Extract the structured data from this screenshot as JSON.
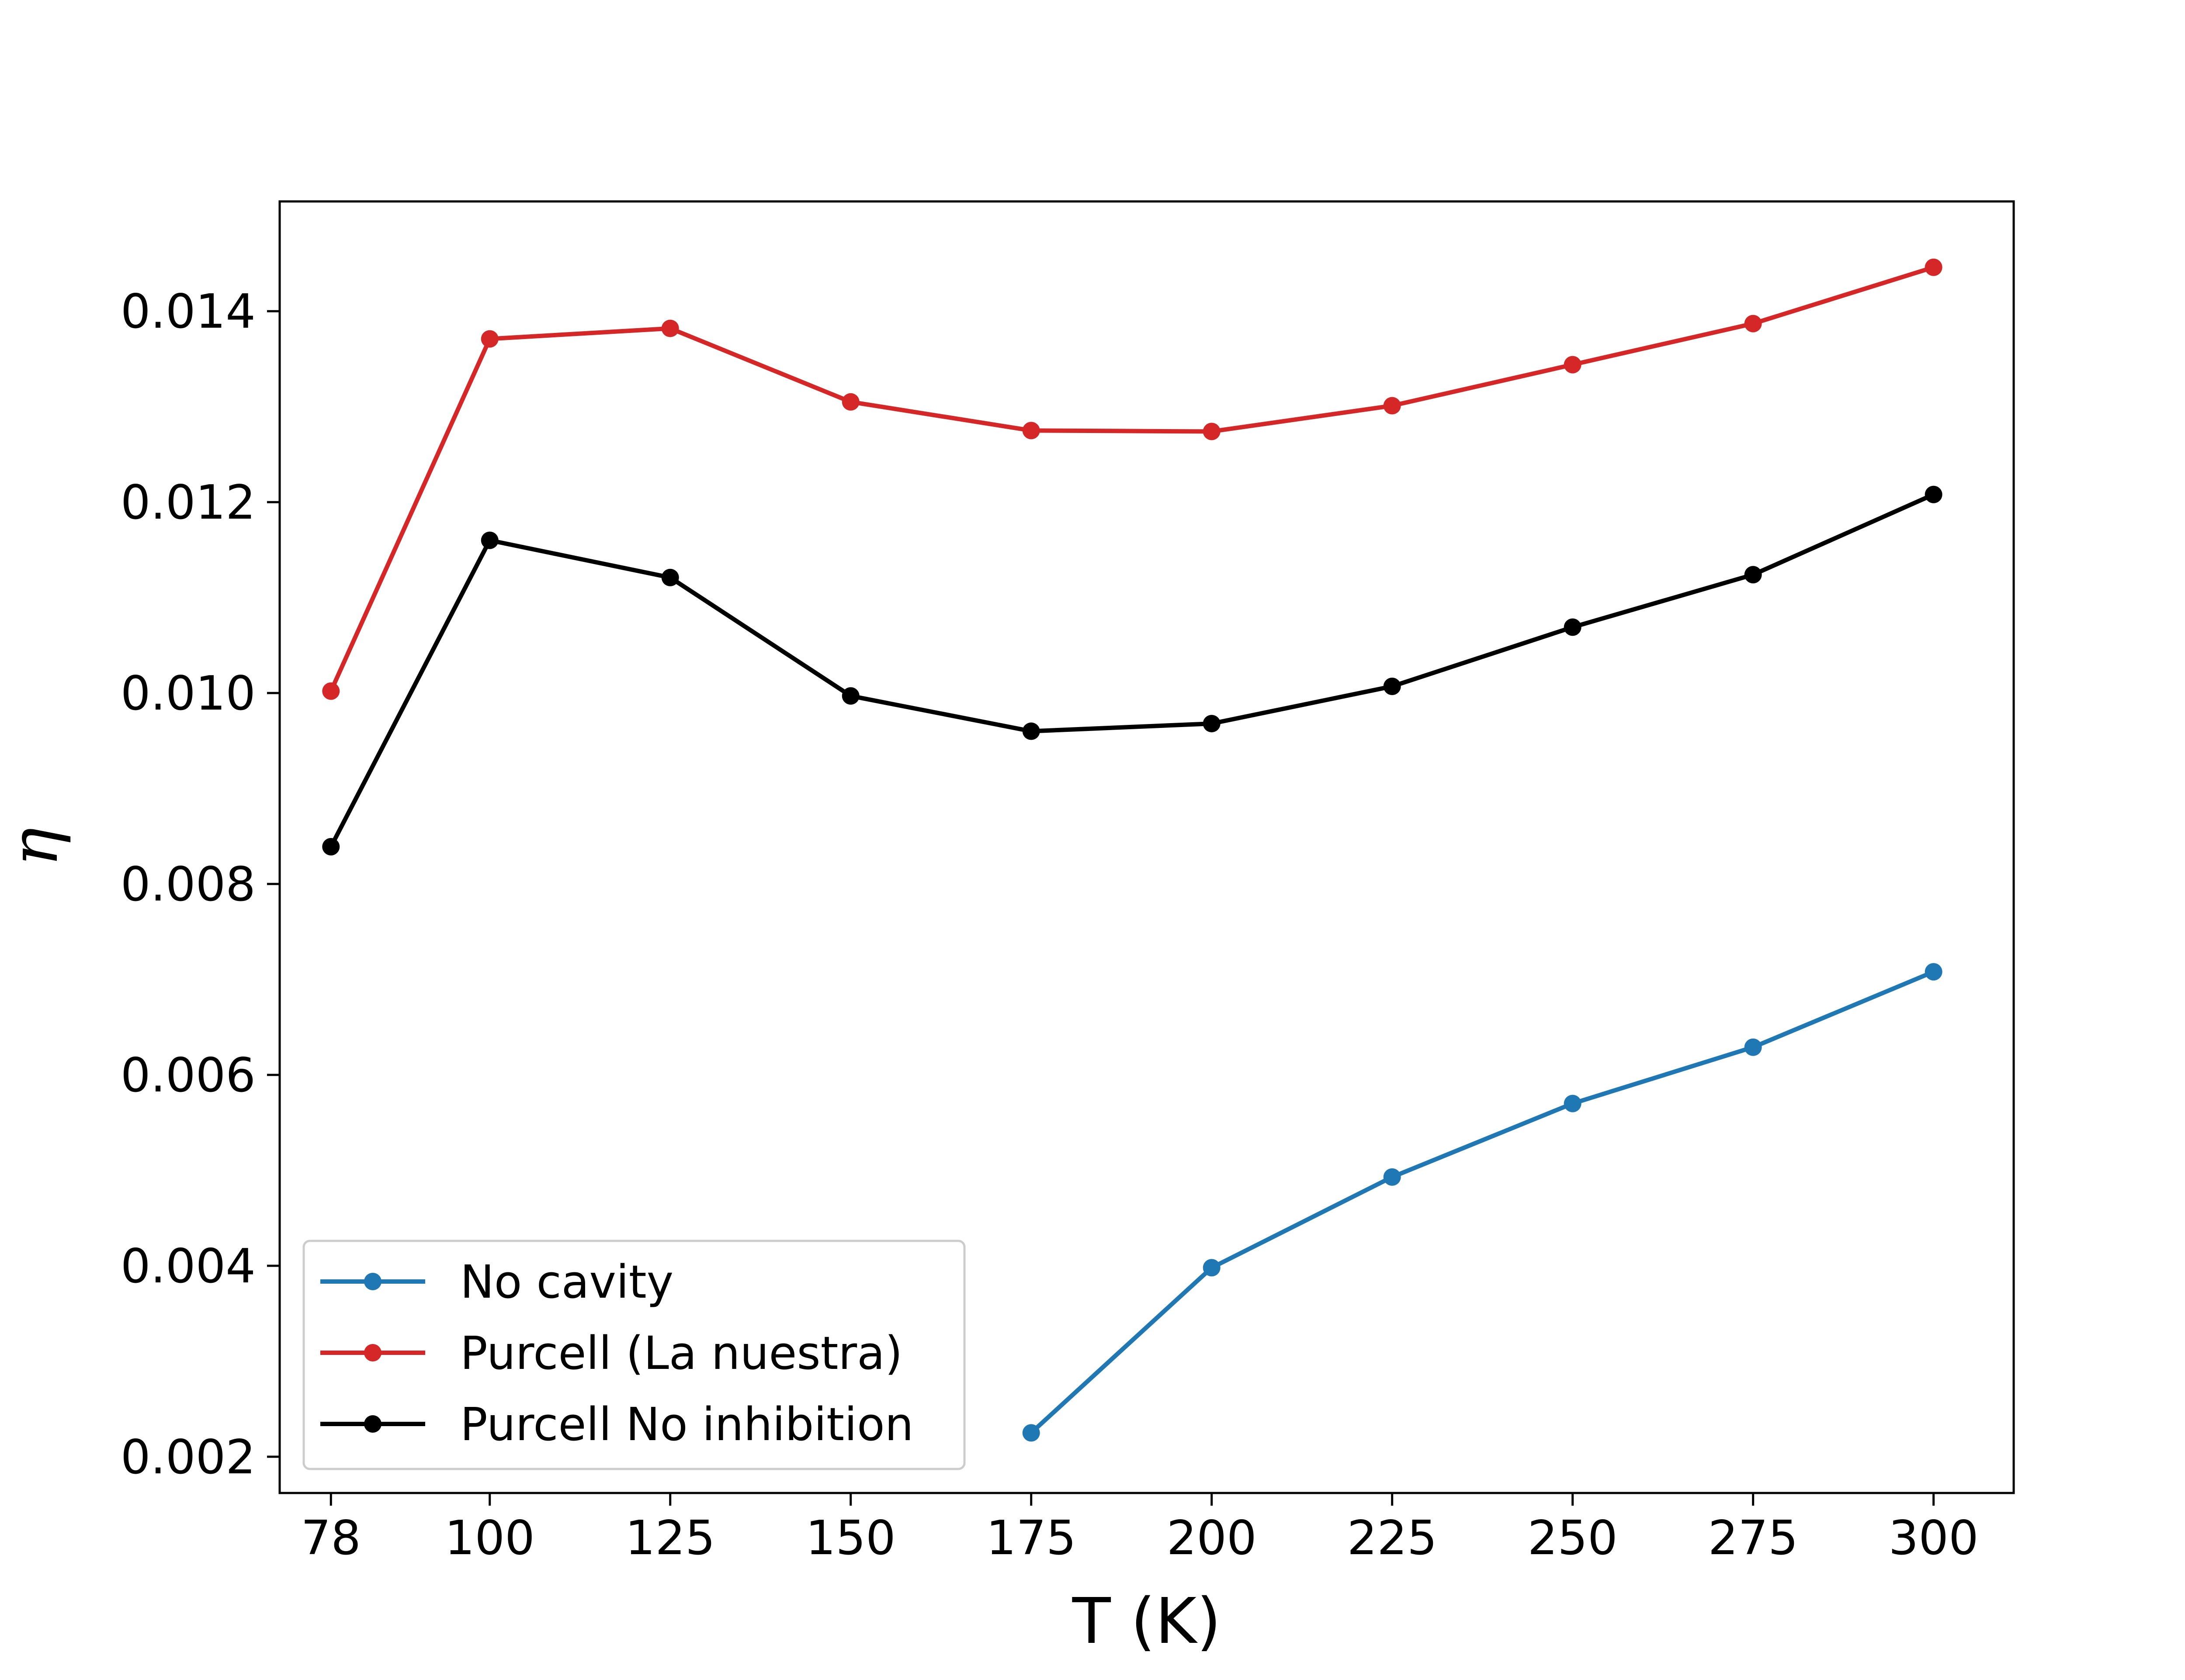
{
  "chart_data": {
    "type": "line",
    "xlabel": "T (K)",
    "ylabel": "η",
    "xlim": [
      70.9,
      311.1
    ],
    "ylim": [
      0.00162,
      0.01515
    ],
    "xticks": [
      78,
      100,
      125,
      150,
      175,
      200,
      225,
      250,
      275,
      300
    ],
    "xtick_labels": [
      "78",
      "100",
      "125",
      "150",
      "175",
      "200",
      "225",
      "250",
      "275",
      "300"
    ],
    "yticks": [
      0.002,
      0.004,
      0.006,
      0.008,
      0.01,
      0.012,
      0.014
    ],
    "ytick_labels": [
      "0.002",
      "0.004",
      "0.006",
      "0.008",
      "0.010",
      "0.012",
      "0.014"
    ],
    "grid": false,
    "legend_position": "lower-left",
    "series": [
      {
        "name": "No cavity",
        "color": "#1f77b4",
        "x": [
          175,
          200,
          225,
          250,
          275,
          300
        ],
        "y": [
          0.00225,
          0.00398,
          0.00493,
          0.0057,
          0.00629,
          0.00708
        ]
      },
      {
        "name": "Purcell (La nuestra)",
        "color": "#d62728",
        "x": [
          78,
          100,
          125,
          150,
          175,
          200,
          225,
          250,
          275,
          300
        ],
        "y": [
          0.01002,
          0.01371,
          0.01382,
          0.01305,
          0.01275,
          0.01274,
          0.01301,
          0.01344,
          0.01387,
          0.01446
        ]
      },
      {
        "name": "Purcell No inhibition",
        "color": "#000000",
        "x": [
          78,
          100,
          125,
          150,
          175,
          200,
          225,
          250,
          275,
          300
        ],
        "y": [
          0.00839,
          0.0116,
          0.01121,
          0.00997,
          0.0096,
          0.00968,
          0.01007,
          0.01069,
          0.01124,
          0.01208
        ]
      }
    ]
  }
}
